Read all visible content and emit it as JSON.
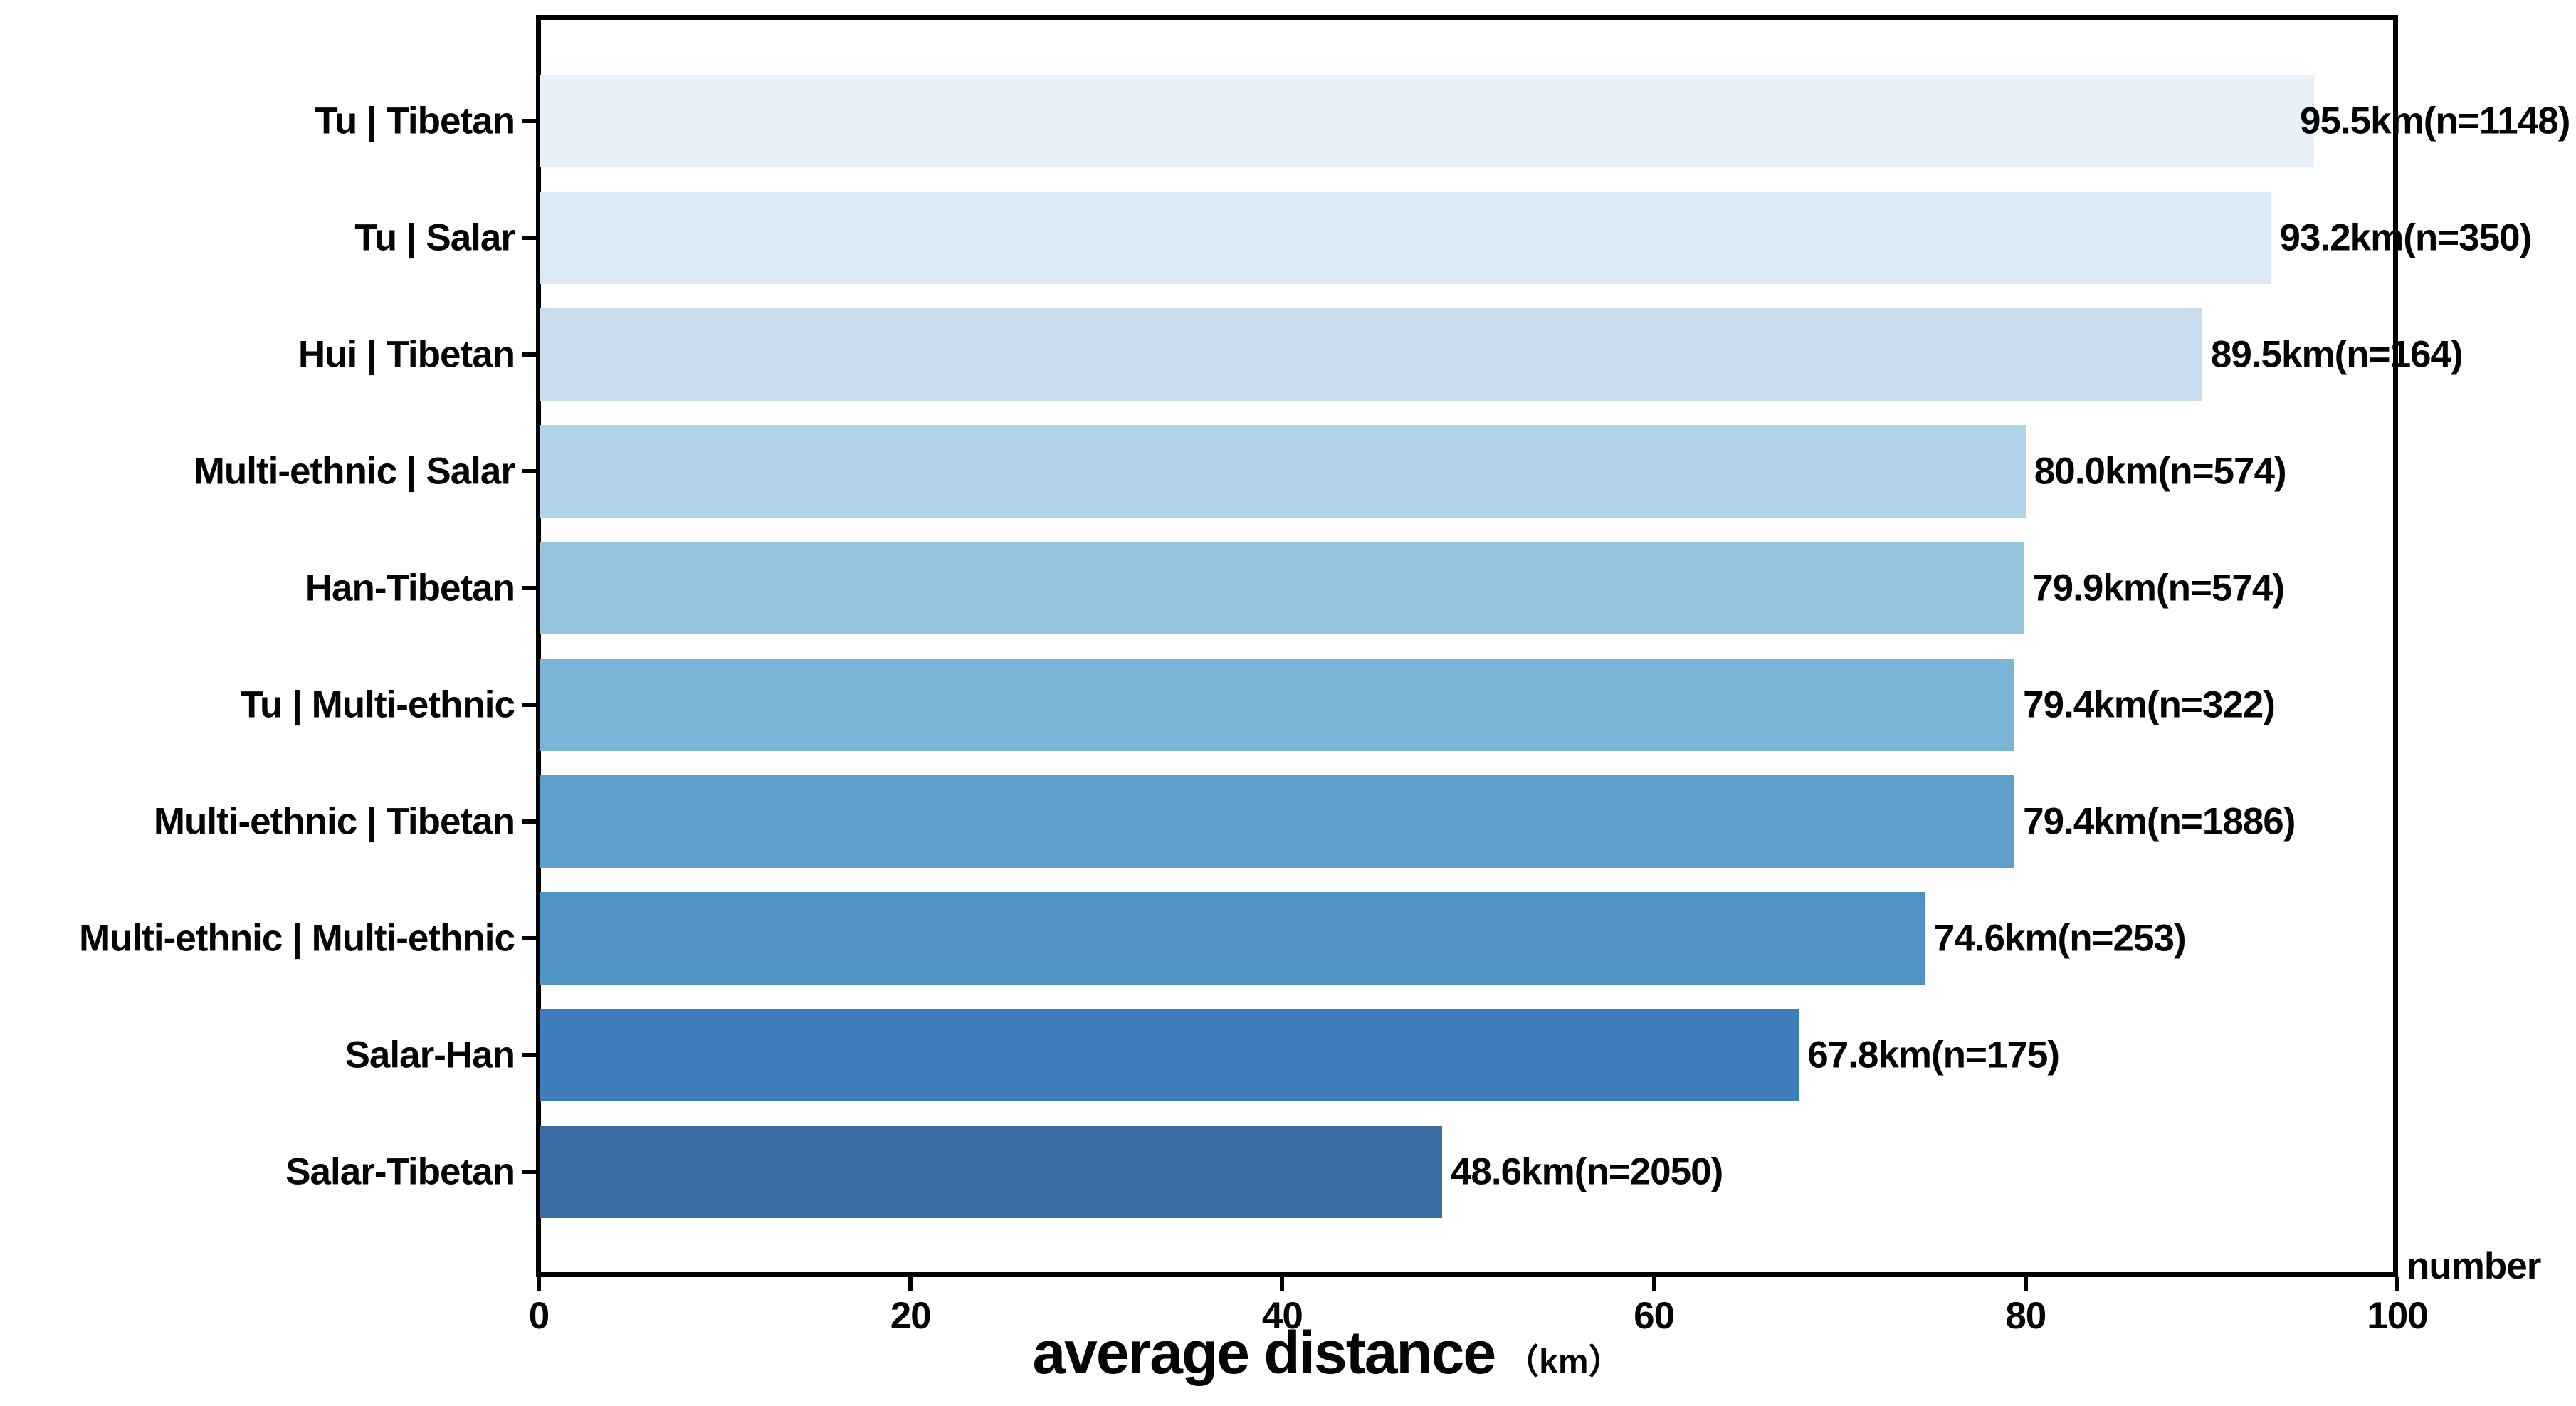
{
  "axis": {
    "x_title": "average distance",
    "x_unit": "（km）",
    "right_label": "number"
  },
  "chart_data": {
    "type": "bar",
    "orientation": "horizontal",
    "title": "",
    "xlabel": "average distance（km）",
    "ylabel": "",
    "right_axis_label": "number",
    "xlim": [
      0,
      100
    ],
    "x_ticks": [
      "0",
      "20",
      "40",
      "60",
      "80",
      "100"
    ],
    "x_tick_values": [
      0,
      20,
      40,
      60,
      80,
      100
    ],
    "grid": false,
    "legend_position": "none",
    "categories": [
      "Tu | Tibetan",
      "Tu | Salar",
      "Hui | Tibetan",
      "Multi-ethnic | Salar",
      "Han-Tibetan",
      "Tu | Multi-ethnic",
      "Multi-ethnic | Tibetan",
      "Multi-ethnic | Multi-ethnic",
      "Salar-Han",
      "Salar-Tibetan"
    ],
    "values": [
      95.5,
      93.2,
      89.5,
      80.0,
      79.9,
      79.4,
      79.4,
      74.6,
      67.8,
      48.6
    ],
    "sample_sizes": [
      1148,
      350,
      164,
      574,
      574,
      322,
      1886,
      253,
      175,
      2050
    ],
    "bar_labels": [
      "95.5km(n=1148)",
      "93.2km(n=350)",
      "89.5km(n=164)",
      "80.0km(n=574)",
      "79.9km(n=574)",
      "79.4km(n=322)",
      "79.4km(n=1886)",
      "74.6km(n=253)",
      "67.8km(n=175)",
      "48.6km(n=2050)"
    ],
    "bar_colors": [
      "#e8f1fa",
      "#dbe9f5",
      "#c9ddef",
      "#b3d3e8",
      "#95c5de",
      "#7ab4d6",
      "#5e9fce",
      "#4f93c6",
      "#3f7eba",
      "#3a6da6"
    ]
  }
}
